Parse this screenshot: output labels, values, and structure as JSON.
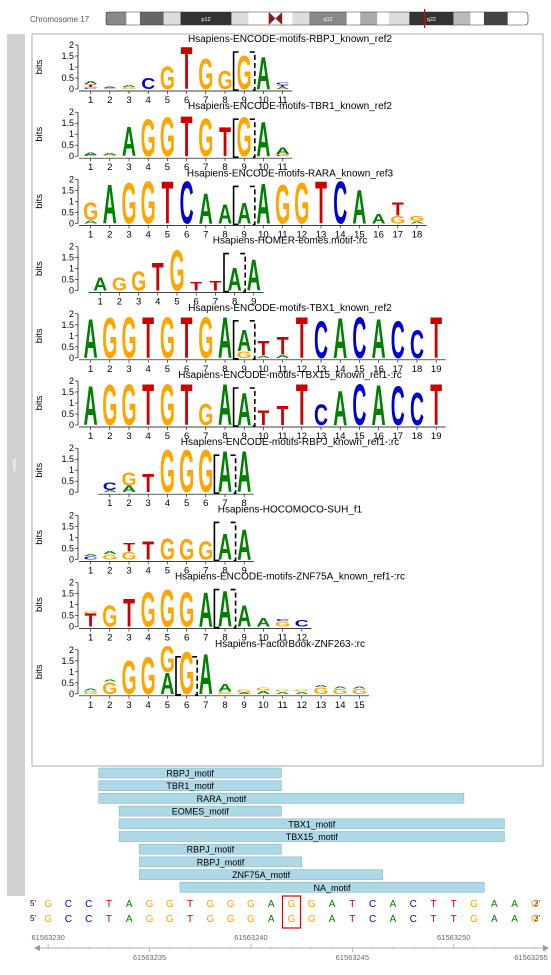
{
  "ideogram": {
    "chromosome_label": "Chromosome 17",
    "bands": [
      {
        "label": "",
        "color": "#888888",
        "w": 1.2
      },
      {
        "label": "",
        "color": "#ffffff",
        "w": 0.8
      },
      {
        "label": "",
        "color": "#666666",
        "w": 1.4
      },
      {
        "label": "",
        "color": "#dddddd",
        "w": 1.0
      },
      {
        "label": "p12",
        "color": "#333333",
        "w": 3.0
      },
      {
        "label": "",
        "color": "#dddddd",
        "w": 1.0
      },
      {
        "label": "",
        "color": "#ffffff",
        "w": 1.2
      },
      {
        "label": "cen",
        "color": "#8b1a1a",
        "w": 0.8
      },
      {
        "label": "",
        "color": "#ffffff",
        "w": 0.6
      },
      {
        "label": "",
        "color": "#dddddd",
        "w": 1.0
      },
      {
        "label": "q12",
        "color": "#888888",
        "w": 2.2
      },
      {
        "label": "",
        "color": "#ffffff",
        "w": 0.8
      },
      {
        "label": "",
        "color": "#aaaaaa",
        "w": 1.0
      },
      {
        "label": "",
        "color": "#ffffff",
        "w": 0.7
      },
      {
        "label": "",
        "color": "#dddddd",
        "w": 1.2
      },
      {
        "label": "q22",
        "color": "#333333",
        "w": 2.6
      },
      {
        "label": "",
        "color": "#bbbbbb",
        "w": 1.0
      },
      {
        "label": "",
        "color": "#ffffff",
        "w": 0.8
      },
      {
        "label": "",
        "color": "#444444",
        "w": 1.4
      },
      {
        "label": "",
        "color": "#ffffff",
        "w": 1.2
      }
    ],
    "marker_fraction": 0.755
  },
  "side_label": "motifs",
  "logo_axis": {
    "ylabel": "bits",
    "ticks": [
      "0",
      "0.5",
      "1",
      "1.5",
      "2"
    ]
  },
  "colors": {
    "A": "#008000",
    "C": "#0000cc",
    "G": "#ffa500",
    "T": "#cc0000"
  },
  "motifs": [
    {
      "title": "Hsapiens-ENCODE-motifs-RBPJ_known_ref2",
      "offset": 0,
      "positions": [
        "1",
        "2",
        "3",
        "4",
        "5",
        "6",
        "7",
        "8",
        "9",
        "10",
        "11"
      ],
      "columns": [
        [
          [
            "C",
            0.05
          ],
          [
            "G",
            0.05
          ],
          [
            "T",
            0.12
          ],
          [
            "A",
            0.15
          ]
        ],
        [
          [
            "C",
            0.04
          ],
          [
            "A",
            0.06
          ]
        ],
        [
          [
            "G",
            0.08
          ],
          [
            "A",
            0.1
          ]
        ],
        [
          [
            "C",
            0.5
          ]
        ],
        [
          [
            "G",
            1.05
          ]
        ],
        [
          [
            "T",
            1.95
          ]
        ],
        [
          [
            "G",
            1.4
          ]
        ],
        [
          [
            "G",
            0.85
          ]
        ],
        [
          [
            "G",
            1.55
          ]
        ],
        [
          [
            "A",
            1.5
          ]
        ],
        [
          [
            "A",
            0.1
          ],
          [
            "T",
            0.1
          ],
          [
            "C",
            0.08
          ]
        ]
      ],
      "highlight": 9
    },
    {
      "title": "Hsapiens-ENCODE-motifs-TBR1_known_ref2",
      "offset": 0,
      "positions": [
        "1",
        "2",
        "3",
        "4",
        "5",
        "6",
        "7",
        "8",
        "9",
        "10",
        "11"
      ],
      "columns": [
        [
          [
            "C",
            0.06
          ],
          [
            "A",
            0.12
          ]
        ],
        [
          [
            "G",
            0.06
          ],
          [
            "A",
            0.1
          ]
        ],
        [
          [
            "A",
            1.35
          ]
        ],
        [
          [
            "G",
            1.7
          ]
        ],
        [
          [
            "G",
            1.8
          ]
        ],
        [
          [
            "T",
            1.85
          ]
        ],
        [
          [
            "G",
            1.75
          ]
        ],
        [
          [
            "T",
            1.35
          ]
        ],
        [
          [
            "G",
            1.8
          ]
        ],
        [
          [
            "A",
            1.6
          ]
        ],
        [
          [
            "C",
            0.05
          ],
          [
            "G",
            0.06
          ],
          [
            "A",
            0.3
          ]
        ]
      ],
      "highlight": 9
    },
    {
      "title": "Hsapiens-ENCODE-motifs-RARA_known_ref3",
      "offset": 0,
      "positions": [
        "1",
        "2",
        "3",
        "4",
        "5",
        "6",
        "7",
        "8",
        "9",
        "10",
        "11",
        "12",
        "13",
        "14",
        "15",
        "16",
        "17",
        "18"
      ],
      "columns": [
        [
          [
            "A",
            0.15
          ],
          [
            "G",
            0.8
          ]
        ],
        [
          [
            "A",
            1.8
          ]
        ],
        [
          [
            "G",
            1.9
          ]
        ],
        [
          [
            "G",
            1.95
          ]
        ],
        [
          [
            "T",
            1.95
          ]
        ],
        [
          [
            "C",
            1.95
          ]
        ],
        [
          [
            "A",
            1.4
          ]
        ],
        [
          [
            "A",
            0.9
          ]
        ],
        [
          [
            "A",
            0.95
          ]
        ],
        [
          [
            "A",
            1.85
          ]
        ],
        [
          [
            "G",
            1.8
          ]
        ],
        [
          [
            "G",
            1.9
          ]
        ],
        [
          [
            "T",
            1.95
          ]
        ],
        [
          [
            "C",
            1.95
          ]
        ],
        [
          [
            "A",
            1.55
          ]
        ],
        [
          [
            "A",
            0.45
          ]
        ],
        [
          [
            "G",
            0.35
          ],
          [
            "T",
            0.6
          ]
        ],
        [
          [
            "A",
            0.1
          ],
          [
            "G",
            0.25
          ]
        ]
      ],
      "highlight": 9
    },
    {
      "title": "Hsapiens-HOMER-eomes.motif-:rc",
      "offset": 0.5,
      "positions": [
        "1",
        "2",
        "3",
        "4",
        "5",
        "6",
        "7",
        "8",
        "9"
      ],
      "columns": [
        [
          [
            "A",
            0.6
          ]
        ],
        [
          [
            "G",
            0.6
          ]
        ],
        [
          [
            "G",
            0.9
          ]
        ],
        [
          [
            "T",
            1.3
          ]
        ],
        [
          [
            "G",
            1.85
          ]
        ],
        [
          [
            "T",
            0.4
          ]
        ],
        [
          [
            "T",
            0.45
          ]
        ],
        [
          [
            "A",
            1.05
          ]
        ],
        [
          [
            "A",
            1.45
          ]
        ]
      ],
      "highlight": 8
    },
    {
      "title": "Hsapiens-ENCODE-motifs-TBX1_known_ref2",
      "offset": 0,
      "positions": [
        "1",
        "2",
        "3",
        "4",
        "5",
        "6",
        "7",
        "8",
        "9",
        "10",
        "11",
        "12",
        "13",
        "14",
        "15",
        "16",
        "17",
        "18",
        "19"
      ],
      "columns": [
        [
          [
            "A",
            1.8
          ]
        ],
        [
          [
            "G",
            1.85
          ]
        ],
        [
          [
            "G",
            1.9
          ]
        ],
        [
          [
            "T",
            1.9
          ]
        ],
        [
          [
            "G",
            1.9
          ]
        ],
        [
          [
            "T",
            1.9
          ]
        ],
        [
          [
            "G",
            1.9
          ]
        ],
        [
          [
            "A",
            1.9
          ]
        ],
        [
          [
            "G",
            0.3
          ],
          [
            "A",
            1.0
          ]
        ],
        [
          [
            "A",
            0.1
          ],
          [
            "T",
            0.7
          ]
        ],
        [
          [
            "A",
            0.15
          ],
          [
            "T",
            0.8
          ]
        ],
        [
          [
            "T",
            1.9
          ]
        ],
        [
          [
            "C",
            1.7
          ]
        ],
        [
          [
            "A",
            1.85
          ]
        ],
        [
          [
            "C",
            1.9
          ]
        ],
        [
          [
            "A",
            1.8
          ]
        ],
        [
          [
            "C",
            1.7
          ]
        ],
        [
          [
            "C",
            1.3
          ]
        ],
        [
          [
            "T",
            1.9
          ]
        ]
      ],
      "highlight": 9
    },
    {
      "title": "Hsapiens-ENCODE-motifs-TBX15_known_ref1-:rc",
      "offset": 0,
      "positions": [
        "1",
        "2",
        "3",
        "4",
        "5",
        "6",
        "7",
        "8",
        "9",
        "10",
        "11",
        "12",
        "13",
        "14",
        "15",
        "16",
        "17",
        "18",
        "19"
      ],
      "columns": [
        [
          [
            "A",
            1.8
          ]
        ],
        [
          [
            "G",
            1.85
          ]
        ],
        [
          [
            "G",
            1.9
          ]
        ],
        [
          [
            "T",
            1.9
          ]
        ],
        [
          [
            "G",
            1.9
          ]
        ],
        [
          [
            "T",
            1.9
          ]
        ],
        [
          [
            "G",
            1.0
          ]
        ],
        [
          [
            "A",
            1.9
          ]
        ],
        [
          [
            "A",
            1.5
          ]
        ],
        [
          [
            "T",
            0.7
          ]
        ],
        [
          [
            "T",
            0.9
          ]
        ],
        [
          [
            "T",
            1.9
          ]
        ],
        [
          [
            "C",
            0.95
          ]
        ],
        [
          [
            "A",
            1.6
          ]
        ],
        [
          [
            "C",
            1.9
          ]
        ],
        [
          [
            "A",
            1.85
          ]
        ],
        [
          [
            "C",
            1.8
          ]
        ],
        [
          [
            "C",
            1.5
          ]
        ],
        [
          [
            "T",
            1.9
          ]
        ]
      ],
      "highlight": 9
    },
    {
      "title": "Hsapiens-ENCODE-motifs-RBPJ_known_ref1-:rc",
      "offset": 1,
      "positions": [
        "1",
        "2",
        "3",
        "4",
        "5",
        "6",
        "7",
        "8"
      ],
      "columns": [
        [
          [
            "A",
            0.1
          ],
          [
            "C",
            0.35
          ]
        ],
        [
          [
            "A",
            0.3
          ],
          [
            "G",
            0.6
          ]
        ],
        [
          [
            "T",
            0.85
          ]
        ],
        [
          [
            "G",
            1.95
          ]
        ],
        [
          [
            "G",
            1.95
          ]
        ],
        [
          [
            "G",
            1.95
          ]
        ],
        [
          [
            "A",
            1.9
          ]
        ],
        [
          [
            "A",
            1.9
          ]
        ]
      ],
      "highlight": 7
    },
    {
      "title": "Hsapiens-HOCOMOCO-SUH_f1",
      "offset": 0,
      "positions": [
        "1",
        "2",
        "3",
        "4",
        "5",
        "6",
        "7",
        "8",
        "9"
      ],
      "columns": [
        [
          [
            "C",
            0.15
          ],
          [
            "A",
            0.1
          ]
        ],
        [
          [
            "G",
            0.25
          ],
          [
            "A",
            0.15
          ]
        ],
        [
          [
            "G",
            0.35
          ],
          [
            "T",
            0.4
          ]
        ],
        [
          [
            "T",
            0.85
          ]
        ],
        [
          [
            "G",
            1.0
          ]
        ],
        [
          [
            "G",
            0.95
          ]
        ],
        [
          [
            "G",
            0.85
          ]
        ],
        [
          [
            "A",
            1.2
          ]
        ],
        [
          [
            "A",
            1.4
          ]
        ]
      ],
      "highlight": 8
    },
    {
      "title": "Hsapiens-ENCODE-motifs-ZNF75A_known_ref1-:rc",
      "offset": 0,
      "positions": [
        "1",
        "2",
        "3",
        "4",
        "5",
        "6",
        "7",
        "8",
        "9",
        "10",
        "11",
        "12"
      ],
      "columns": [
        [
          [
            "T",
            0.6
          ],
          [
            "G",
            0.08
          ]
        ],
        [
          [
            "G",
            1.0
          ]
        ],
        [
          [
            "T",
            1.3
          ]
        ],
        [
          [
            "G",
            1.6
          ]
        ],
        [
          [
            "G",
            1.7
          ]
        ],
        [
          [
            "G",
            1.6
          ]
        ],
        [
          [
            "A",
            1.6
          ]
        ],
        [
          [
            "A",
            1.65
          ]
        ],
        [
          [
            "A",
            1.0
          ]
        ],
        [
          [
            "A",
            0.4
          ]
        ],
        [
          [
            "G",
            0.25
          ],
          [
            "C",
            0.1
          ]
        ],
        [
          [
            "C",
            0.3
          ]
        ]
      ],
      "highlight": 8
    },
    {
      "title": "Hsapiens-FactorBook-ZNF263-:rc",
      "offset": 0,
      "positions": [
        "1",
        "2",
        "3",
        "4",
        "5",
        "6",
        "7",
        "8",
        "9",
        "10",
        "11",
        "12",
        "13",
        "14",
        "15"
      ],
      "columns": [
        [
          [
            "G",
            0.15
          ],
          [
            "A",
            0.08
          ]
        ],
        [
          [
            "G",
            0.55
          ],
          [
            "A",
            0.1
          ]
        ],
        [
          [
            "G",
            1.55
          ]
        ],
        [
          [
            "G",
            1.7
          ]
        ],
        [
          [
            "A",
            1.0
          ],
          [
            "G",
            1.2
          ]
        ],
        [
          [
            "G",
            1.95
          ]
        ],
        [
          [
            "A",
            1.85
          ]
        ],
        [
          [
            "G",
            0.1
          ],
          [
            "A",
            0.35
          ]
        ],
        [
          [
            "A",
            0.05
          ],
          [
            "G",
            0.15
          ]
        ],
        [
          [
            "A",
            0.15
          ],
          [
            "G",
            0.15
          ]
        ],
        [
          [
            "A",
            0.1
          ],
          [
            "G",
            0.1
          ]
        ],
        [
          [
            "A",
            0.1
          ],
          [
            "G",
            0.1
          ]
        ],
        [
          [
            "G",
            0.3
          ],
          [
            "A",
            0.1
          ]
        ],
        [
          [
            "G",
            0.25
          ],
          [
            "A",
            0.1
          ]
        ],
        [
          [
            "G",
            0.25
          ],
          [
            "A",
            0.1
          ]
        ]
      ],
      "highlight": 6
    }
  ],
  "tracks": [
    {
      "label": "RBPJ_motif",
      "start": 61563233,
      "end": 61563241
    },
    {
      "label": "TBR1_motif",
      "start": 61563233,
      "end": 61563241
    },
    {
      "label": "RARA_motif",
      "start": 61563233,
      "end": 61563250
    },
    {
      "label": "EOMES_motif",
      "start": 61563234,
      "end": 61563241
    },
    {
      "label": "TBX1_motif",
      "start": 61563234,
      "end": 61563252
    },
    {
      "label": "TBX15_motif",
      "start": 61563234,
      "end": 61563252
    },
    {
      "label": "RBPJ_motif",
      "start": 61563235,
      "end": 61563241
    },
    {
      "label": "RBPJ_motif",
      "start": 61563235,
      "end": 61563242
    },
    {
      "label": "ZNF75A_motif",
      "start": 61563235,
      "end": 61563246
    },
    {
      "label": "NA_motif",
      "start": 61563237,
      "end": 61563251
    }
  ],
  "sequence": {
    "bases": [
      "G",
      "C",
      "C",
      "T",
      "A",
      "G",
      "G",
      "T",
      "G",
      "G",
      "G",
      "A",
      "G",
      "G",
      "A",
      "T",
      "C",
      "A",
      "C",
      "T",
      "T",
      "G",
      "A",
      "A",
      "G"
    ],
    "strand_5": "5'",
    "strand_3": "3'",
    "highlight_index": 12
  },
  "genome_axis": {
    "start": 61563229.5,
    "end": 61563254.5,
    "top_labels": [
      "61563230",
      "61563240",
      "61563250"
    ],
    "bottom_labels": [
      "61563235",
      "61563245",
      "61563255"
    ]
  }
}
